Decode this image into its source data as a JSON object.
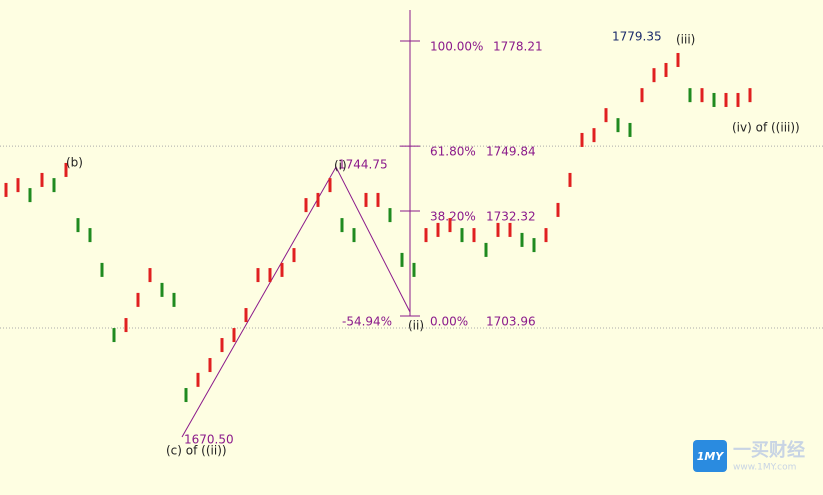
{
  "chart_data": {
    "type": "price-bars",
    "values": [
      1738.0,
      1739.3,
      1736.6,
      1740.7,
      1739.3,
      1743.4,
      1728.5,
      1725.8,
      1716.4,
      1698.8,
      1701.5,
      1708.3,
      1715.0,
      1711.0,
      1708.3,
      1682.6,
      1686.7,
      1690.7,
      1696.1,
      1698.8,
      1704.2,
      1715.0,
      1715.0,
      1716.4,
      1720.4,
      1733.9,
      1735.3,
      1739.3,
      1728.5,
      1725.8,
      1735.3,
      1735.3,
      1731.2,
      1719.1,
      1716.4,
      1725.8,
      1727.2,
      1728.5,
      1725.8,
      1725.8,
      1721.8,
      1727.2,
      1727.2,
      1724.5,
      1723.1,
      1725.8,
      1732.6,
      1740.7,
      1751.5,
      1752.8,
      1758.2,
      1755.5,
      1754.2,
      1763.6,
      1769.0,
      1770.4,
      1773.1,
      1763.6,
      1763.6,
      1762.3,
      1762.3,
      1762.3,
      1763.6
    ],
    "ylim": [
      1655.6,
      1789.3
    ],
    "up_color": "#e02020",
    "down_color": "#1f8a1f",
    "fib_color": "#8b1a8b",
    "fib_levels": [
      {
        "label": "100.00%",
        "value": 1778.21
      },
      {
        "label": "61.80%",
        "value": 1749.84
      },
      {
        "label": "38.20%",
        "value": 1732.32
      },
      {
        "label": "0.00%",
        "value": 1703.96
      }
    ],
    "fib_extension": "-54.94%",
    "price_labels": [
      {
        "value": 1779.35,
        "label": "1779.35"
      },
      {
        "value": 1744.75,
        "label": "1744.75"
      },
      {
        "value": 1670.5,
        "label": "1670.50"
      }
    ],
    "wave_labels": [
      "(b)",
      "(i)",
      "(ii)",
      "(iii)",
      "(iv) of ((iii))",
      "(c) of ((ii))"
    ]
  },
  "logo": {
    "badge": "1MY",
    "name": "一买财经",
    "url": "www.1MY.com"
  }
}
